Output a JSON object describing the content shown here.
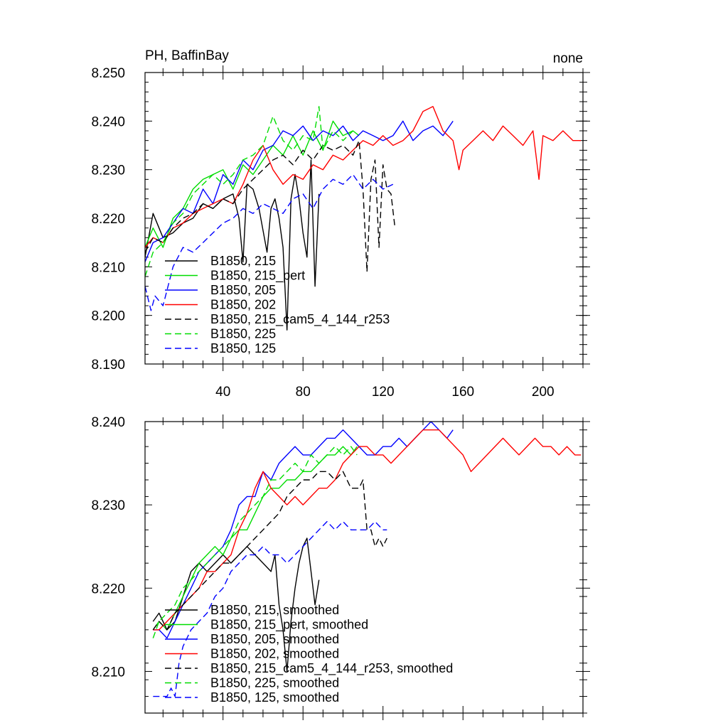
{
  "chart_data": [
    {
      "type": "line",
      "title": "PH, BaffinBay",
      "title_right": "none",
      "xlabel": "",
      "ylabel": "",
      "xlim": [
        1,
        220
      ],
      "ylim": [
        8.19,
        8.25
      ],
      "x_ticks": [
        40,
        80,
        120,
        160,
        200
      ],
      "y_ticks": [
        8.19,
        8.2,
        8.21,
        8.22,
        8.23,
        8.24,
        8.25
      ],
      "y_tick_labels": [
        "8.190",
        "8.200",
        "8.210",
        "8.220",
        "8.230",
        "8.240",
        "8.250"
      ],
      "legend_position": "bottom-left",
      "series": [
        {
          "name": "B1850, 215",
          "color": "#000000",
          "dash": "solid",
          "x": [
            1,
            5,
            10,
            15,
            20,
            25,
            30,
            35,
            40,
            45,
            48,
            50,
            52,
            55,
            58,
            62,
            64,
            66,
            68,
            70,
            72,
            74,
            76,
            78,
            80,
            82,
            84,
            86,
            88
          ],
          "values": [
            8.212,
            8.221,
            8.216,
            8.217,
            8.219,
            8.22,
            8.223,
            8.222,
            8.224,
            8.225,
            8.22,
            8.211,
            8.227,
            8.226,
            8.222,
            8.213,
            8.222,
            8.224,
            8.22,
            8.214,
            8.197,
            8.224,
            8.229,
            8.224,
            8.217,
            8.212,
            8.232,
            8.206,
            8.225
          ]
        },
        {
          "name": "B1850, 215_pert",
          "color": "#00dd00",
          "dash": "solid",
          "x": [
            1,
            5,
            10,
            15,
            20,
            25,
            30,
            35,
            40,
            45,
            50,
            55,
            60,
            65,
            70,
            75,
            80,
            85,
            90,
            95,
            100,
            105,
            108
          ],
          "values": [
            8.214,
            8.218,
            8.214,
            8.22,
            8.222,
            8.226,
            8.228,
            8.229,
            8.23,
            8.226,
            8.231,
            8.229,
            8.232,
            8.235,
            8.233,
            8.237,
            8.233,
            8.238,
            8.234,
            8.24,
            8.237,
            8.238,
            8.237
          ]
        },
        {
          "name": "B1850, 205",
          "color": "#0000ff",
          "dash": "solid",
          "x": [
            1,
            5,
            10,
            15,
            20,
            25,
            30,
            35,
            40,
            45,
            50,
            55,
            60,
            65,
            70,
            75,
            80,
            85,
            90,
            95,
            100,
            105,
            110,
            115,
            120,
            125,
            130,
            135,
            140,
            145,
            150,
            155
          ],
          "values": [
            8.211,
            8.215,
            8.216,
            8.219,
            8.222,
            8.221,
            8.226,
            8.223,
            8.229,
            8.227,
            8.232,
            8.23,
            8.234,
            8.235,
            8.238,
            8.237,
            8.239,
            8.236,
            8.238,
            8.237,
            8.239,
            8.236,
            8.238,
            8.237,
            8.236,
            8.237,
            8.24,
            8.236,
            8.238,
            8.239,
            8.237,
            8.24
          ]
        },
        {
          "name": "B1850, 202",
          "color": "#ff0000",
          "dash": "solid",
          "x": [
            1,
            5,
            10,
            15,
            20,
            25,
            30,
            35,
            40,
            45,
            50,
            55,
            60,
            65,
            70,
            75,
            80,
            85,
            90,
            95,
            100,
            105,
            110,
            115,
            120,
            125,
            130,
            135,
            140,
            145,
            150,
            155,
            158,
            160,
            165,
            170,
            175,
            180,
            185,
            190,
            195,
            198,
            200,
            205,
            210,
            215,
            219
          ],
          "values": [
            8.214,
            8.216,
            8.215,
            8.218,
            8.219,
            8.221,
            8.222,
            8.223,
            8.224,
            8.223,
            8.227,
            8.232,
            8.235,
            8.23,
            8.227,
            8.229,
            8.228,
            8.231,
            8.23,
            8.233,
            8.232,
            8.234,
            8.236,
            8.235,
            8.237,
            8.235,
            8.236,
            8.238,
            8.242,
            8.243,
            8.238,
            8.236,
            8.23,
            8.234,
            8.236,
            8.238,
            8.236,
            8.239,
            8.237,
            8.235,
            8.238,
            8.228,
            8.237,
            8.236,
            8.238,
            8.236,
            8.236
          ]
        },
        {
          "name": "B1850, 215_cam5_4_144_r253",
          "color": "#000000",
          "dash": "dashed",
          "x": [
            1,
            5,
            10,
            15,
            20,
            25,
            30,
            35,
            40,
            45,
            50,
            55,
            60,
            65,
            70,
            75,
            80,
            85,
            90,
            95,
            100,
            105,
            108,
            110,
            112,
            114,
            116,
            118,
            120,
            122,
            124,
            126
          ],
          "values": [
            8.213,
            8.216,
            8.215,
            8.218,
            8.22,
            8.221,
            8.223,
            8.222,
            8.224,
            8.223,
            8.226,
            8.228,
            8.23,
            8.232,
            8.233,
            8.231,
            8.234,
            8.232,
            8.235,
            8.234,
            8.235,
            8.233,
            8.236,
            8.226,
            8.209,
            8.228,
            8.232,
            8.214,
            8.231,
            8.226,
            8.225,
            8.218
          ]
        },
        {
          "name": "B1850, 225",
          "color": "#00dd00",
          "dash": "dashed",
          "x": [
            1,
            5,
            10,
            15,
            20,
            25,
            30,
            35,
            40,
            45,
            50,
            55,
            60,
            65,
            70,
            75,
            80,
            85,
            88,
            90,
            95,
            100,
            105
          ],
          "values": [
            8.208,
            8.213,
            8.215,
            8.219,
            8.221,
            8.225,
            8.227,
            8.229,
            8.227,
            8.229,
            8.232,
            8.233,
            8.235,
            8.241,
            8.236,
            8.234,
            8.237,
            8.236,
            8.243,
            8.234,
            8.238,
            8.236,
            8.238
          ]
        },
        {
          "name": "B1850, 125",
          "color": "#0000ff",
          "dash": "dashed",
          "x": [
            1,
            4,
            6,
            10,
            15,
            20,
            25,
            30,
            35,
            40,
            45,
            50,
            55,
            60,
            65,
            70,
            75,
            80,
            85,
            90,
            95,
            100,
            105,
            110,
            115,
            120,
            125
          ],
          "values": [
            8.206,
            8.201,
            8.204,
            8.202,
            8.21,
            8.214,
            8.213,
            8.215,
            8.217,
            8.219,
            8.22,
            8.222,
            8.221,
            8.223,
            8.222,
            8.221,
            8.224,
            8.225,
            8.222,
            8.226,
            8.228,
            8.227,
            8.229,
            8.226,
            8.228,
            8.226,
            8.227
          ]
        }
      ]
    },
    {
      "type": "line",
      "title": "",
      "xlim": [
        1,
        220
      ],
      "ylim": [
        8.205,
        8.24
      ],
      "x_ticks": [
        40,
        80,
        120,
        160,
        200
      ],
      "y_ticks": [
        8.21,
        8.22,
        8.23,
        8.24
      ],
      "y_tick_labels": [
        "8.210",
        "8.220",
        "8.230",
        "8.240"
      ],
      "legend_position": "bottom-left",
      "series": [
        {
          "name": "B1850, 215, smoothed",
          "color": "#000000",
          "dash": "solid",
          "x": [
            5,
            8,
            12,
            16,
            20,
            24,
            28,
            32,
            36,
            40,
            44,
            48,
            52,
            56,
            60,
            64,
            66,
            68,
            70,
            72,
            74,
            76,
            78,
            80,
            82,
            84,
            86,
            88
          ],
          "values": [
            8.216,
            8.217,
            8.215,
            8.216,
            8.219,
            8.222,
            8.223,
            8.222,
            8.223,
            8.224,
            8.223,
            8.224,
            8.225,
            8.224,
            8.223,
            8.222,
            8.224,
            8.218,
            8.215,
            8.21,
            8.216,
            8.22,
            8.223,
            8.225,
            8.226,
            8.222,
            8.218,
            8.221
          ]
        },
        {
          "name": "B1850, 215_pert, smoothed",
          "color": "#00dd00",
          "dash": "solid",
          "x": [
            5,
            8,
            12,
            16,
            20,
            24,
            28,
            32,
            36,
            40,
            44,
            48,
            52,
            56,
            60,
            64,
            68,
            72,
            76,
            80,
            84,
            88,
            92,
            96,
            100,
            104,
            107
          ],
          "values": [
            8.215,
            8.216,
            8.215,
            8.217,
            8.219,
            8.221,
            8.223,
            8.224,
            8.225,
            8.224,
            8.226,
            8.227,
            8.227,
            8.229,
            8.231,
            8.232,
            8.232,
            8.233,
            8.233,
            8.234,
            8.234,
            8.235,
            8.236,
            8.236,
            8.237,
            8.236,
            8.237
          ]
        },
        {
          "name": "B1850, 205, smoothed",
          "color": "#0000ff",
          "dash": "solid",
          "x": [
            5,
            8,
            12,
            16,
            20,
            24,
            28,
            32,
            36,
            40,
            44,
            48,
            52,
            56,
            60,
            64,
            68,
            72,
            76,
            80,
            84,
            88,
            92,
            96,
            100,
            104,
            108,
            112,
            116,
            120,
            124,
            128,
            132,
            136,
            140,
            144,
            148,
            152,
            155
          ],
          "values": [
            8.215,
            8.215,
            8.214,
            8.216,
            8.218,
            8.22,
            8.222,
            8.223,
            8.224,
            8.225,
            8.227,
            8.23,
            8.231,
            8.231,
            8.234,
            8.233,
            8.235,
            8.236,
            8.237,
            8.236,
            8.236,
            8.237,
            8.238,
            8.238,
            8.239,
            8.238,
            8.237,
            8.236,
            8.236,
            8.237,
            8.237,
            8.238,
            8.237,
            8.238,
            8.239,
            8.24,
            8.239,
            8.238,
            8.239
          ]
        },
        {
          "name": "B1850, 202, smoothed",
          "color": "#ff0000",
          "dash": "solid",
          "x": [
            5,
            8,
            12,
            16,
            20,
            24,
            28,
            32,
            36,
            40,
            44,
            48,
            52,
            56,
            60,
            64,
            68,
            72,
            76,
            80,
            84,
            88,
            92,
            96,
            100,
            104,
            108,
            112,
            116,
            120,
            124,
            128,
            132,
            136,
            140,
            144,
            148,
            152,
            156,
            160,
            164,
            168,
            172,
            176,
            180,
            184,
            188,
            192,
            196,
            200,
            204,
            208,
            212,
            216,
            219
          ],
          "values": [
            8.215,
            8.215,
            8.216,
            8.217,
            8.218,
            8.219,
            8.22,
            8.222,
            8.222,
            8.223,
            8.224,
            8.227,
            8.229,
            8.232,
            8.234,
            8.232,
            8.231,
            8.23,
            8.231,
            8.23,
            8.231,
            8.232,
            8.232,
            8.233,
            8.235,
            8.236,
            8.237,
            8.237,
            8.236,
            8.236,
            8.235,
            8.236,
            8.237,
            8.238,
            8.239,
            8.239,
            8.239,
            8.238,
            8.237,
            8.236,
            8.234,
            8.235,
            8.236,
            8.237,
            8.238,
            8.237,
            8.236,
            8.237,
            8.238,
            8.237,
            8.237,
            8.236,
            8.237,
            8.236,
            8.236
          ]
        },
        {
          "name": "B1850, 215_cam5_4_144_r253, smoothed",
          "color": "#000000",
          "dash": "dashed",
          "x": [
            5,
            8,
            12,
            16,
            20,
            24,
            28,
            32,
            36,
            40,
            44,
            48,
            52,
            56,
            60,
            64,
            68,
            72,
            76,
            80,
            84,
            88,
            92,
            96,
            100,
            104,
            108,
            110,
            112,
            114,
            116,
            118,
            120,
            122
          ],
          "values": [
            8.215,
            8.216,
            8.215,
            8.217,
            8.218,
            8.219,
            8.22,
            8.221,
            8.222,
            8.223,
            8.223,
            8.224,
            8.225,
            8.226,
            8.227,
            8.228,
            8.229,
            8.231,
            8.232,
            8.233,
            8.233,
            8.234,
            8.234,
            8.233,
            8.234,
            8.232,
            8.232,
            8.233,
            8.227,
            8.227,
            8.225,
            8.226,
            8.225,
            8.226
          ]
        },
        {
          "name": "B1850, 225, smoothed",
          "color": "#00dd00",
          "dash": "dashed",
          "x": [
            5,
            8,
            12,
            16,
            20,
            24,
            28,
            32,
            36,
            40,
            44,
            48,
            52,
            56,
            60,
            64,
            68,
            72,
            76,
            80,
            84,
            88,
            92,
            96,
            100,
            104,
            107
          ],
          "values": [
            8.214,
            8.216,
            8.217,
            8.218,
            8.22,
            8.221,
            8.222,
            8.223,
            8.224,
            8.225,
            8.226,
            8.228,
            8.229,
            8.23,
            8.231,
            8.233,
            8.233,
            8.234,
            8.235,
            8.234,
            8.236,
            8.235,
            8.236,
            8.237,
            8.236,
            8.237,
            8.236
          ]
        },
        {
          "name": "B1850, 125, smoothed",
          "color": "#0000ff",
          "dash": "dashed",
          "x": [
            5,
            8,
            10,
            12,
            14,
            16,
            18,
            20,
            24,
            28,
            32,
            36,
            40,
            44,
            48,
            52,
            56,
            60,
            64,
            68,
            72,
            76,
            80,
            84,
            88,
            92,
            96,
            100,
            104,
            108,
            112,
            116,
            120,
            122
          ],
          "values": [
            8.207,
            8.207,
            8.207,
            8.207,
            8.208,
            8.207,
            8.211,
            8.213,
            8.215,
            8.216,
            8.217,
            8.219,
            8.22,
            8.222,
            8.223,
            8.224,
            8.224,
            8.225,
            8.224,
            8.224,
            8.223,
            8.224,
            8.225,
            8.226,
            8.227,
            8.228,
            8.227,
            8.228,
            8.227,
            8.227,
            8.227,
            8.228,
            8.227,
            8.227
          ]
        }
      ]
    }
  ]
}
